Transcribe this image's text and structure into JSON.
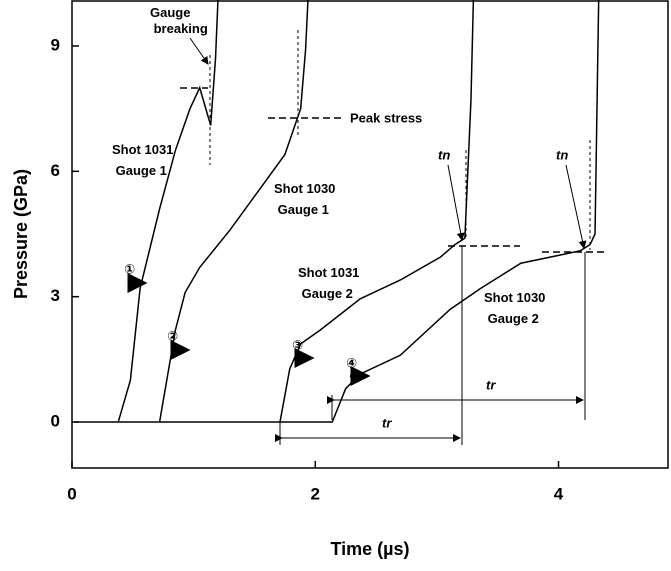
{
  "chart_data": {
    "type": "line",
    "x_label": "Time (µs)",
    "y_label": "Pressure (GPa)",
    "xlim": [
      0,
      4.9
    ],
    "ylim": [
      -1.1,
      10.1
    ],
    "xticks": [
      0,
      2,
      4
    ],
    "yticks": [
      0,
      3,
      6,
      9
    ],
    "grid": false,
    "series": [
      {
        "name": "Shot 1031 Gauge 1",
        "color": "#000000",
        "x": [
          0.02,
          0.38,
          0.48,
          0.56,
          0.72,
          0.85,
          0.97,
          1.05,
          1.14,
          1.18,
          1.2
        ],
        "values": [
          0,
          0,
          1.0,
          3.2,
          5.1,
          6.5,
          7.5,
          8.0,
          7.1,
          8.7,
          10.1
        ]
      },
      {
        "name": "Shot 1030 Gauge 1",
        "color": "#000000",
        "x": [
          0.38,
          0.72,
          0.85,
          0.93,
          1.05,
          1.3,
          1.55,
          1.75,
          1.88,
          1.92,
          1.94
        ],
        "values": [
          0,
          0,
          2.2,
          3.1,
          3.7,
          4.6,
          5.6,
          6.4,
          7.5,
          8.9,
          10.1
        ]
      },
      {
        "name": "Shot 1031 Gauge 2",
        "color": "#000000",
        "x": [
          0.72,
          1.71,
          1.79,
          1.88,
          2.04,
          2.37,
          2.7,
          3.03,
          3.15,
          3.23,
          3.28,
          3.3
        ],
        "values": [
          0,
          0,
          1.27,
          1.87,
          2.2,
          2.95,
          3.4,
          3.95,
          4.25,
          4.4,
          7.7,
          10.1
        ]
      },
      {
        "name": "Shot 1030 Gauge 2",
        "color": "#000000",
        "x": [
          1.71,
          2.14,
          2.25,
          2.37,
          2.7,
          3.11,
          3.36,
          3.69,
          4.02,
          4.18,
          4.26,
          4.3,
          4.33
        ],
        "values": [
          0,
          0,
          0.8,
          1.15,
          1.6,
          2.7,
          3.2,
          3.8,
          4.0,
          4.1,
          4.25,
          4.5,
          10.1
        ]
      }
    ],
    "annotations": [
      "Gauge breaking",
      "Peak stress",
      "①",
      "②",
      "③",
      "④",
      "tn",
      "tn",
      "tr",
      "tr"
    ]
  }
}
